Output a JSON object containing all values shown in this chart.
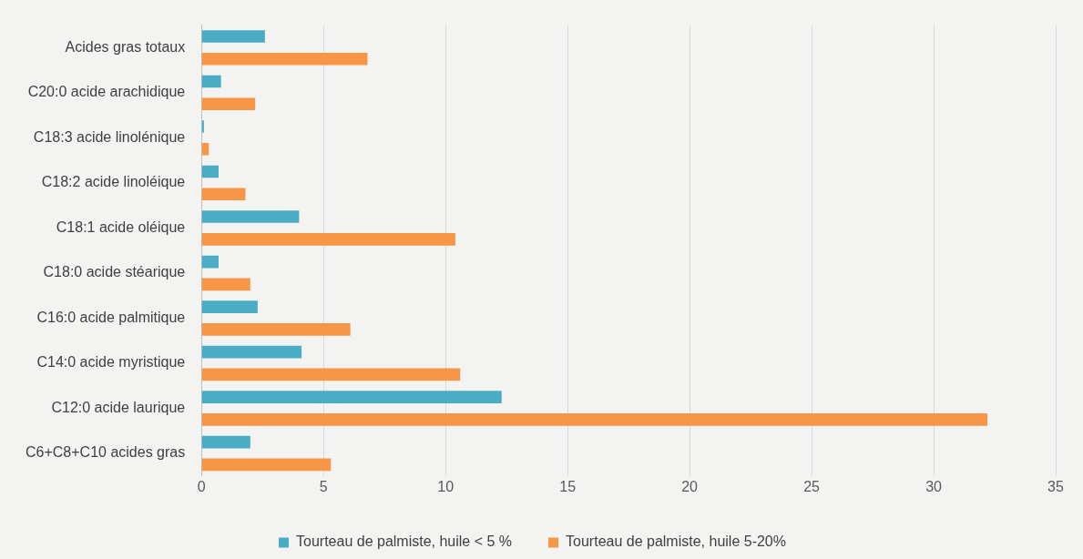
{
  "chart_data": {
    "type": "bar",
    "orientation": "horizontal",
    "categories": [
      "Acides gras totaux",
      "C20:0 acide arachidique",
      "C18:3 acide linolénique",
      "C18:2 acide linoléique",
      "C18:1 acide oléique",
      "C18:0 acide stéarique",
      "C16:0 acide palmitique",
      "C14:0 acide myristique",
      "C12:0 acide laurique",
      "C6+C8+C10 acides gras"
    ],
    "series": [
      {
        "name": "Tourteau de palmiste, huile < 5 %",
        "color": "#4bacc6",
        "values": [
          2.6,
          0.8,
          0.1,
          0.7,
          4.0,
          0.7,
          2.3,
          4.1,
          12.3,
          2.0
        ]
      },
      {
        "name": "Tourteau de palmiste, huile 5-20%",
        "color": "#f79646",
        "values": [
          6.8,
          2.2,
          0.3,
          1.8,
          10.4,
          2.0,
          6.1,
          10.6,
          32.2,
          5.3
        ]
      }
    ],
    "xlim": [
      0,
      35
    ],
    "xticks": [
      0,
      5,
      10,
      15,
      20,
      25,
      30,
      35
    ],
    "grid": "x",
    "legend": "bottom"
  }
}
